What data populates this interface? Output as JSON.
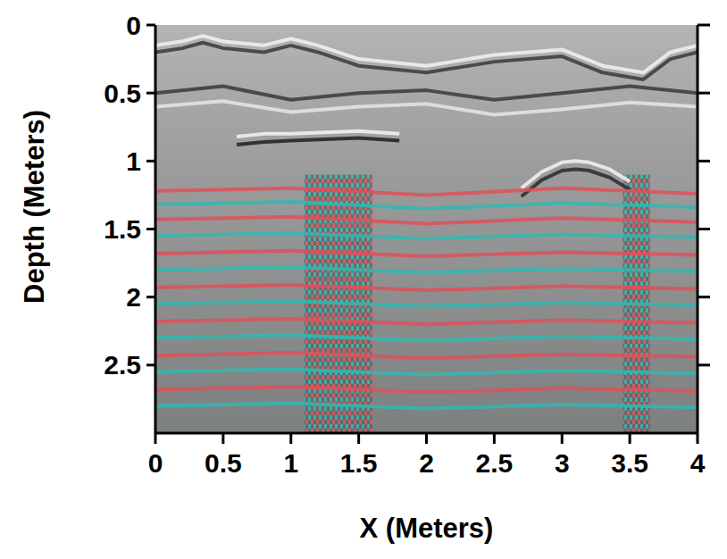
{
  "chart_data": {
    "type": "radargram",
    "x_label": "X (Meters)",
    "y_label": "Depth (Meters)",
    "xlim": [
      0,
      4
    ],
    "ylim": [
      0,
      3
    ],
    "xticks": [
      0,
      0.5,
      1,
      1.5,
      2,
      2.5,
      3,
      3.5,
      4
    ],
    "yticks": [
      0,
      0.5,
      1,
      1.5,
      2,
      2.5
    ],
    "zones": [
      {
        "x": [
          1.1,
          1.6
        ],
        "y": [
          1.1,
          3
        ]
      },
      {
        "x": [
          3.45,
          3.65
        ],
        "y": [
          1.1,
          3
        ]
      }
    ],
    "series": [
      {
        "color": "#f2f2f2",
        "x": [
          0,
          0.2,
          0.35,
          0.5,
          0.8,
          1.0,
          1.2,
          1.5,
          2.0,
          2.5,
          3.0,
          3.3,
          3.6,
          3.8,
          4
        ],
        "values": [
          0.15,
          0.12,
          0.08,
          0.12,
          0.15,
          0.1,
          0.15,
          0.25,
          0.3,
          0.22,
          0.18,
          0.3,
          0.35,
          0.2,
          0.15
        ]
      },
      {
        "color": "#3a3a3a",
        "x": [
          0,
          0.2,
          0.35,
          0.5,
          0.8,
          1.0,
          1.2,
          1.5,
          2.0,
          2.5,
          3.0,
          3.3,
          3.6,
          3.8,
          4
        ],
        "values": [
          0.2,
          0.17,
          0.13,
          0.17,
          0.2,
          0.15,
          0.2,
          0.3,
          0.35,
          0.27,
          0.23,
          0.35,
          0.4,
          0.25,
          0.2
        ]
      },
      {
        "color": "#3a3a3a",
        "x": [
          0,
          0.5,
          1,
          1.5,
          2,
          2.5,
          3,
          3.5,
          4
        ],
        "values": [
          0.5,
          0.45,
          0.55,
          0.5,
          0.48,
          0.55,
          0.5,
          0.45,
          0.5
        ]
      },
      {
        "color": "#e6e6e6",
        "x": [
          0,
          0.5,
          1,
          1.5,
          2,
          2.5,
          3,
          3.5,
          4
        ],
        "values": [
          0.6,
          0.56,
          0.64,
          0.6,
          0.58,
          0.66,
          0.62,
          0.57,
          0.6
        ]
      },
      {
        "color": "#f5f5f5",
        "x": [
          0.6,
          0.8,
          1.0,
          1.5,
          1.8
        ],
        "values": [
          0.82,
          0.8,
          0.8,
          0.78,
          0.8
        ]
      },
      {
        "color": "#1e1e1e",
        "x": [
          0.6,
          0.8,
          1.0,
          1.5,
          1.8
        ],
        "values": [
          0.88,
          0.86,
          0.85,
          0.83,
          0.85
        ]
      },
      {
        "color": "#f5f5f5",
        "x": [
          2.7,
          2.85,
          3.0,
          3.1,
          3.2,
          3.35,
          3.5
        ],
        "values": [
          1.2,
          1.08,
          1.01,
          1.0,
          1.01,
          1.06,
          1.15
        ]
      },
      {
        "color": "#2a2a2a",
        "x": [
          2.7,
          2.85,
          3.0,
          3.1,
          3.2,
          3.35,
          3.5
        ],
        "values": [
          1.26,
          1.14,
          1.07,
          1.06,
          1.07,
          1.12,
          1.21
        ]
      },
      {
        "color": "#e0505a",
        "x": [
          0,
          1,
          2,
          3,
          4
        ],
        "values": [
          1.22,
          1.2,
          1.25,
          1.2,
          1.24
        ]
      },
      {
        "color": "#2fb8b0",
        "x": [
          0,
          1,
          2,
          3,
          4
        ],
        "values": [
          1.32,
          1.3,
          1.35,
          1.31,
          1.34
        ]
      },
      {
        "color": "#e0505a",
        "x": [
          0,
          1,
          2,
          3,
          4
        ],
        "values": [
          1.43,
          1.41,
          1.46,
          1.42,
          1.45
        ]
      },
      {
        "color": "#2fb8b0",
        "x": [
          0,
          1,
          2,
          3,
          4
        ],
        "values": [
          1.55,
          1.53,
          1.57,
          1.54,
          1.56
        ]
      },
      {
        "color": "#e0505a",
        "x": [
          0,
          1,
          2,
          3,
          4
        ],
        "values": [
          1.68,
          1.66,
          1.7,
          1.67,
          1.69
        ]
      },
      {
        "color": "#2fb8b0",
        "x": [
          0,
          1,
          2,
          3,
          4
        ],
        "values": [
          1.8,
          1.78,
          1.82,
          1.79,
          1.81
        ]
      },
      {
        "color": "#e0505a",
        "x": [
          0,
          1,
          2,
          3,
          4
        ],
        "values": [
          1.93,
          1.91,
          1.95,
          1.92,
          1.94
        ]
      },
      {
        "color": "#2fb8b0",
        "x": [
          0,
          1,
          2,
          3,
          4
        ],
        "values": [
          2.05,
          2.03,
          2.07,
          2.04,
          2.06
        ]
      },
      {
        "color": "#e0505a",
        "x": [
          0,
          1,
          2,
          3,
          4
        ],
        "values": [
          2.18,
          2.16,
          2.2,
          2.17,
          2.19
        ]
      },
      {
        "color": "#2fb8b0",
        "x": [
          0,
          1,
          2,
          3,
          4
        ],
        "values": [
          2.3,
          2.28,
          2.32,
          2.29,
          2.31
        ]
      },
      {
        "color": "#e0505a",
        "x": [
          0,
          1,
          2,
          3,
          4
        ],
        "values": [
          2.43,
          2.41,
          2.45,
          2.42,
          2.44
        ]
      },
      {
        "color": "#2fb8b0",
        "x": [
          0,
          1,
          2,
          3,
          4
        ],
        "values": [
          2.55,
          2.53,
          2.57,
          2.54,
          2.56
        ]
      },
      {
        "color": "#e0505a",
        "x": [
          0,
          1,
          2,
          3,
          4
        ],
        "values": [
          2.68,
          2.66,
          2.7,
          2.67,
          2.69
        ]
      },
      {
        "color": "#2fb8b0",
        "x": [
          0,
          1,
          2,
          3,
          4
        ],
        "values": [
          2.8,
          2.78,
          2.82,
          2.79,
          2.81
        ]
      }
    ]
  }
}
